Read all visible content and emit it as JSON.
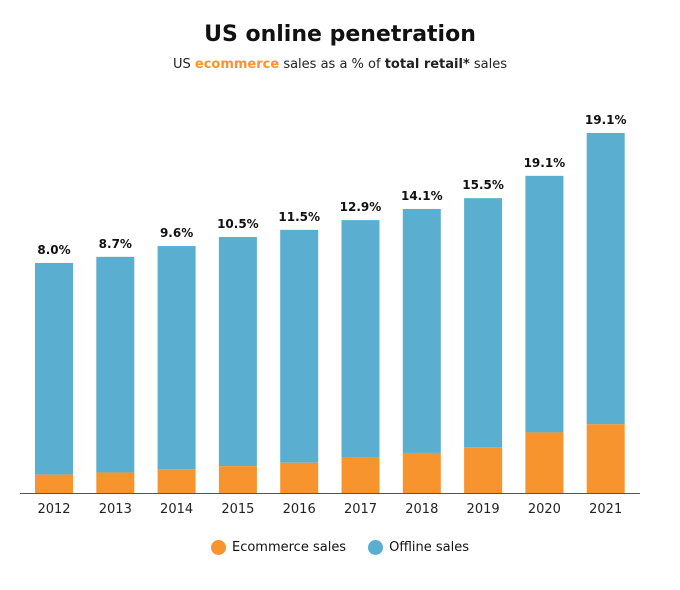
{
  "chart_data": {
    "type": "bar",
    "stacked": true,
    "title": "US online penetration",
    "subtitle": {
      "prefix": "US ",
      "highlight": "ecommerce",
      "middle": " sales as a % of ",
      "bold": "total retail*",
      "suffix": " sales"
    },
    "categories": [
      "2012",
      "2013",
      "2014",
      "2015",
      "2016",
      "2017",
      "2018",
      "2019",
      "2020",
      "2021"
    ],
    "data_labels": [
      "8.0%",
      "8.7%",
      "9.6%",
      "10.5%",
      "11.5%",
      "12.9%",
      "14.1%",
      "15.5%",
      "19.1%",
      "19.1%"
    ],
    "ecommerce_share_pct": [
      8.0,
      8.7,
      9.6,
      10.5,
      11.5,
      12.9,
      14.1,
      15.5,
      19.1,
      19.1
    ],
    "total_retail_index": [
      63.9,
      65.6,
      68.6,
      71.1,
      73.1,
      75.8,
      78.9,
      81.9,
      88.1,
      100
    ],
    "series": [
      {
        "name": "Ecommerce sales",
        "color": "#f7942d"
      },
      {
        "name": "Offline sales",
        "color": "#5aafd0"
      }
    ],
    "legend": "bottom",
    "grid": false,
    "y_axis_shown": false
  }
}
